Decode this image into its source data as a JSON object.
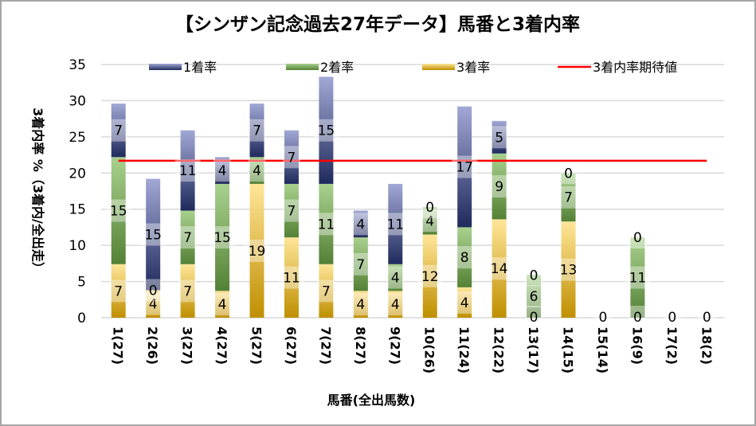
{
  "chart_data": {
    "type": "bar",
    "stacked": true,
    "title": "【シンザン記念過去27年データ】馬番と3着内率",
    "xlabel": "馬番(全出馬数)",
    "ylabel": "3着内率 %（3着内/全出走）",
    "ylim": [
      0,
      35
    ],
    "yticks": [
      0,
      5,
      10,
      15,
      20,
      25,
      30,
      35
    ],
    "grid": true,
    "legend_position": "top",
    "categories": [
      "1(27)",
      "2(26)",
      "3(27)",
      "4(27)",
      "5(27)",
      "6(27)",
      "7(27)",
      "8(27)",
      "9(27)",
      "10(26)",
      "11(24)",
      "12(22)",
      "13(17)",
      "14(15)",
      "15(14)",
      "16(9)",
      "17(2)",
      "18(2)"
    ],
    "series": [
      {
        "name": "3着率",
        "color_dark": "#bf8f00",
        "color_light": "#ffe699",
        "values": [
          7.4,
          3.8,
          7.4,
          3.7,
          18.5,
          11.1,
          7.4,
          3.7,
          3.7,
          11.5,
          4.2,
          13.6,
          0,
          13.3,
          0,
          0,
          0,
          0
        ],
        "labels": [
          "7",
          "4",
          "7",
          "4",
          "19",
          "11",
          "7",
          "4",
          "4",
          "12",
          "4",
          "14",
          "0",
          "13",
          "0",
          "0",
          "0",
          "0"
        ]
      },
      {
        "name": "2着率",
        "color_dark": "#538135",
        "color_light": "#a9d18e",
        "values": [
          14.8,
          0,
          7.4,
          14.8,
          3.7,
          7.4,
          11.1,
          7.4,
          3.7,
          3.8,
          8.3,
          9.1,
          5.9,
          6.7,
          0,
          11.1,
          0,
          0
        ],
        "labels": [
          "15",
          "0",
          "7",
          "15",
          "4",
          "7",
          "11",
          "7",
          "4",
          "4",
          "8",
          "9",
          "6",
          "7",
          "",
          "11",
          "",
          ""
        ]
      },
      {
        "name": "1着率",
        "color_dark": "#1f2a5c",
        "color_light": "#a2a8d5",
        "values": [
          7.4,
          15.4,
          11.1,
          3.7,
          7.4,
          7.4,
          14.8,
          3.7,
          11.1,
          0,
          16.7,
          4.5,
          0,
          0,
          0,
          0,
          0,
          0
        ],
        "labels": [
          "7",
          "15",
          "11",
          "4",
          "7",
          "7",
          "15",
          "4",
          "11",
          "0",
          "17",
          "5",
          "0",
          "0",
          "",
          "0",
          "",
          ""
        ]
      }
    ],
    "line": {
      "name": "3着内率期待値",
      "color": "#ff0000",
      "value": 21.7
    },
    "legend_order": [
      "1着率",
      "2着率",
      "3着率",
      "3着内率期待値"
    ]
  }
}
